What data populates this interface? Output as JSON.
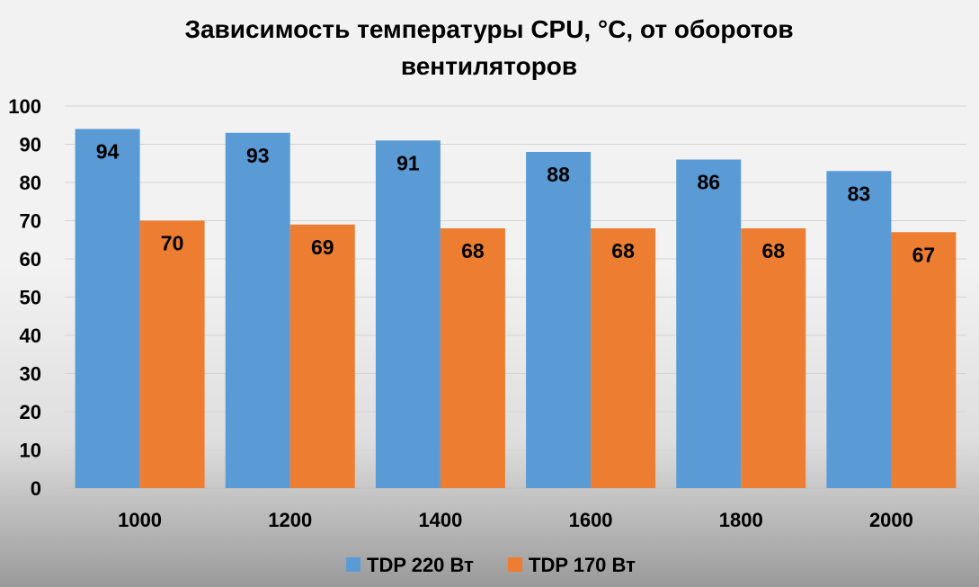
{
  "chart_data": {
    "type": "bar",
    "title_lines": [
      "Зависимость температуры CPU, °C, от оборотов",
      "вентиляторов"
    ],
    "categories": [
      "1000",
      "1200",
      "1400",
      "1600",
      "1800",
      "2000"
    ],
    "series": [
      {
        "name": "TDP 220 Вт",
        "color": "#5b9bd5",
        "values": [
          94,
          93,
          91,
          88,
          86,
          83
        ]
      },
      {
        "name": "TDP 170 Вт",
        "color": "#ed7d31",
        "values": [
          70,
          69,
          68,
          68,
          68,
          67
        ]
      }
    ],
    "ylim": [
      0,
      100
    ],
    "yticks": [
      0,
      10,
      20,
      30,
      40,
      50,
      60,
      70,
      80,
      90,
      100
    ],
    "grid": true,
    "legend_position": "bottom",
    "data_labels": true
  }
}
